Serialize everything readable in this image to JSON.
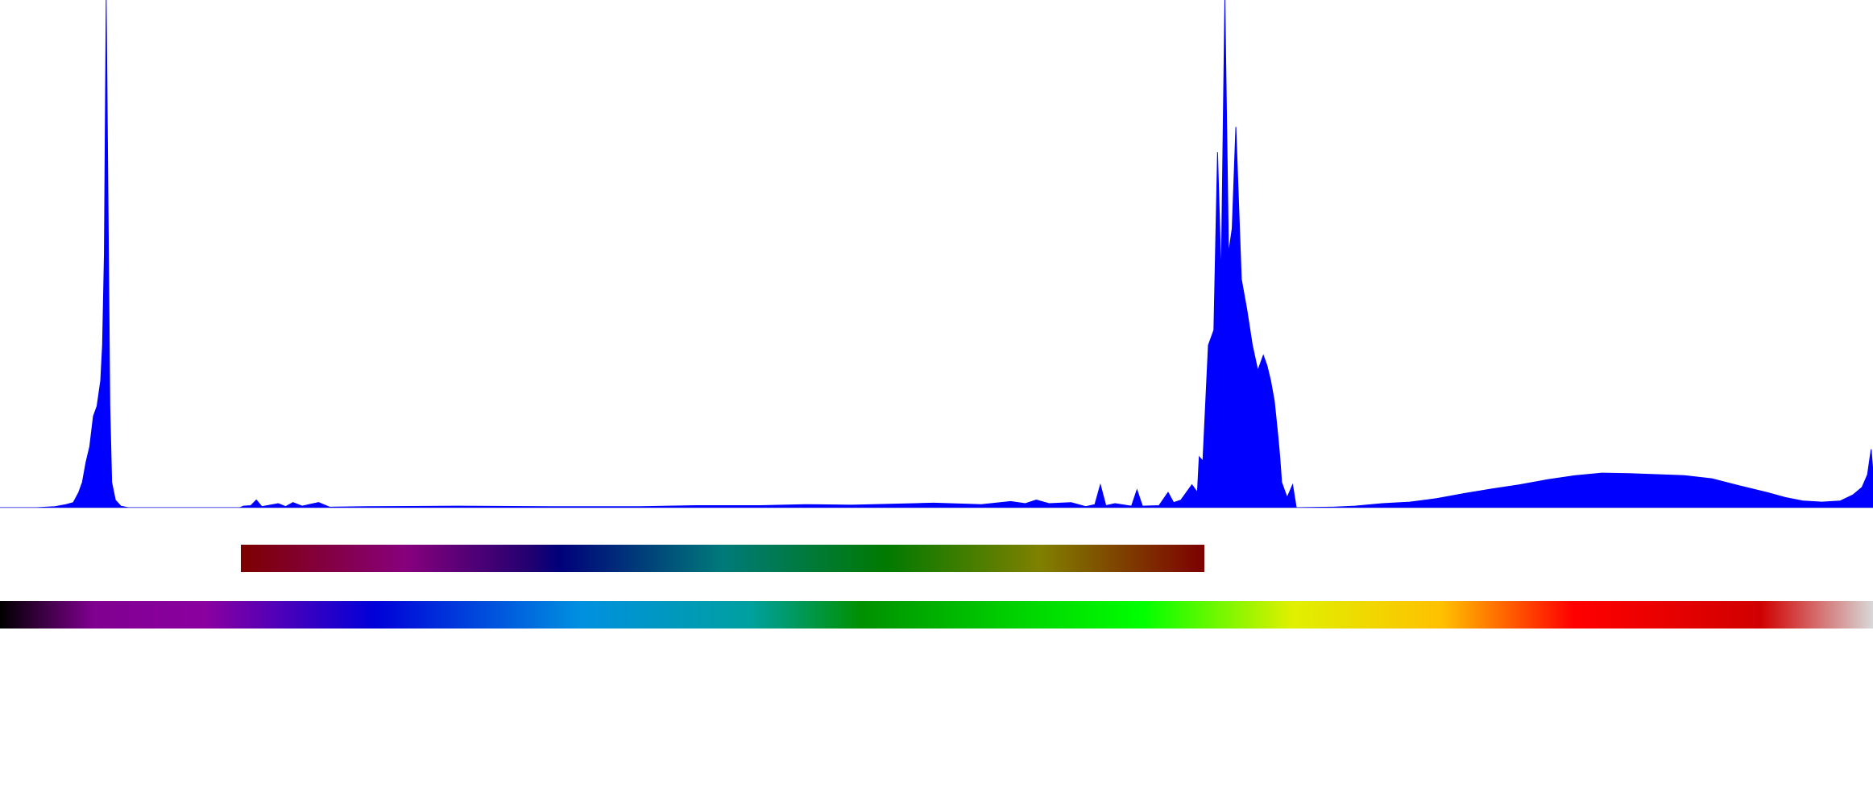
{
  "chart_data": {
    "type": "area",
    "title": "",
    "xlabel": "",
    "ylabel": "",
    "xlim": [
      0,
      1023
    ],
    "ylim": [
      0,
      1.0
    ],
    "grid": false,
    "legend": "none",
    "fill_color": "#0000ff",
    "baseline_color": "#c8c8e8",
    "series": [
      {
        "points": [
          [
            0,
            0.0
          ],
          [
            20,
            0.0
          ],
          [
            30,
            0.002
          ],
          [
            36,
            0.006
          ],
          [
            40,
            0.01
          ],
          [
            43,
            0.03
          ],
          [
            45,
            0.05
          ],
          [
            47,
            0.09
          ],
          [
            49,
            0.12
          ],
          [
            51,
            0.18
          ],
          [
            53,
            0.2
          ],
          [
            55,
            0.25
          ],
          [
            56,
            0.32
          ],
          [
            57,
            0.5
          ],
          [
            58,
            1.0
          ],
          [
            59,
            0.6
          ],
          [
            60,
            0.2
          ],
          [
            61,
            0.05
          ],
          [
            63,
            0.015
          ],
          [
            66,
            0.003
          ],
          [
            70,
            0.0
          ],
          [
            131,
            0.0
          ],
          [
            133,
            0.003
          ],
          [
            137,
            0.004
          ],
          [
            140,
            0.015
          ],
          [
            143,
            0.002
          ],
          [
            152,
            0.008
          ],
          [
            156,
            0.002
          ],
          [
            160,
            0.01
          ],
          [
            165,
            0.003
          ],
          [
            174,
            0.01
          ],
          [
            180,
            0.001
          ],
          [
            200,
            0.002
          ],
          [
            250,
            0.003
          ],
          [
            300,
            0.002
          ],
          [
            350,
            0.002
          ],
          [
            380,
            0.004
          ],
          [
            415,
            0.004
          ],
          [
            440,
            0.006
          ],
          [
            465,
            0.005
          ],
          [
            500,
            0.008
          ],
          [
            510,
            0.009
          ],
          [
            536,
            0.006
          ],
          [
            552,
            0.012
          ],
          [
            560,
            0.008
          ],
          [
            566,
            0.015
          ],
          [
            573,
            0.008
          ],
          [
            585,
            0.01
          ],
          [
            593,
            0.002
          ],
          [
            598,
            0.006
          ],
          [
            601,
            0.045
          ],
          [
            604,
            0.004
          ],
          [
            609,
            0.008
          ],
          [
            618,
            0.003
          ],
          [
            621,
            0.035
          ],
          [
            624,
            0.003
          ],
          [
            633,
            0.004
          ],
          [
            638,
            0.03
          ],
          [
            641,
            0.01
          ],
          [
            645,
            0.015
          ],
          [
            648,
            0.03
          ],
          [
            651,
            0.045
          ],
          [
            654,
            0.03
          ],
          [
            655,
            0.1
          ],
          [
            657,
            0.092
          ],
          [
            660,
            0.32
          ],
          [
            663,
            0.35
          ],
          [
            665,
            0.7
          ],
          [
            667,
            0.45
          ],
          [
            669,
            1.0
          ],
          [
            671,
            0.5
          ],
          [
            673,
            0.55
          ],
          [
            675,
            0.75
          ],
          [
            678,
            0.45
          ],
          [
            681,
            0.39
          ],
          [
            684,
            0.32
          ],
          [
            687,
            0.27
          ],
          [
            690,
            0.3
          ],
          [
            692,
            0.28
          ],
          [
            694,
            0.25
          ],
          [
            696,
            0.21
          ],
          [
            698,
            0.14
          ],
          [
            699,
            0.1
          ],
          [
            700,
            0.05
          ],
          [
            703,
            0.02
          ],
          [
            706,
            0.045
          ],
          [
            708,
            0.0
          ],
          [
            728,
            0.001
          ],
          [
            740,
            0.003
          ],
          [
            755,
            0.008
          ],
          [
            770,
            0.011
          ],
          [
            785,
            0.018
          ],
          [
            800,
            0.028
          ],
          [
            815,
            0.037
          ],
          [
            830,
            0.045
          ],
          [
            845,
            0.055
          ],
          [
            860,
            0.063
          ],
          [
            875,
            0.068
          ],
          [
            890,
            0.067
          ],
          [
            905,
            0.065
          ],
          [
            920,
            0.063
          ],
          [
            935,
            0.057
          ],
          [
            950,
            0.043
          ],
          [
            965,
            0.03
          ],
          [
            975,
            0.02
          ],
          [
            985,
            0.013
          ],
          [
            995,
            0.011
          ],
          [
            1005,
            0.013
          ],
          [
            1012,
            0.025
          ],
          [
            1017,
            0.04
          ],
          [
            1020,
            0.065
          ],
          [
            1022,
            0.115
          ],
          [
            1023,
            0.07
          ]
        ]
      }
    ],
    "color_bars": [
      {
        "name": "selection-range",
        "range": [
          132,
          708
        ],
        "stops": [
          "#7d0000",
          "#88007c",
          "#00007a",
          "#007a7a",
          "#007a00",
          "#808000",
          "#7d0000"
        ]
      },
      {
        "name": "full-spectrum",
        "range": [
          0,
          1023
        ],
        "stops": [
          "#000000",
          "#800090",
          "#0000d8",
          "#0090e0",
          "#00a0a0",
          "#009000",
          "#00d000",
          "#00ff00",
          "#e0f000",
          "#ffc000",
          "#ff0000",
          "#d00000",
          "#d8d8d8"
        ]
      }
    ]
  }
}
